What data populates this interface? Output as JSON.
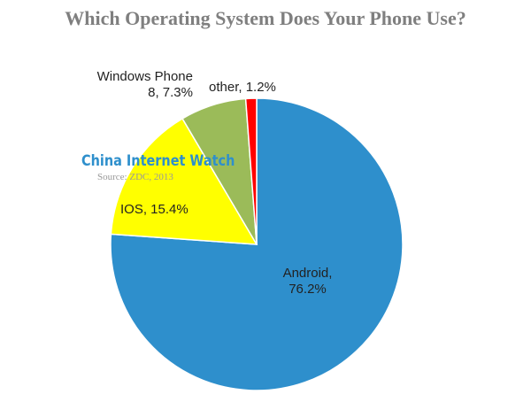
{
  "chart_data": {
    "type": "pie",
    "title": "Which Operating System Does Your Phone Use?",
    "values": [
      76.2,
      15.4,
      7.3,
      1.2
    ],
    "value_labels": [
      "Android, 76.2%",
      "IOS, 15.4%",
      "Windows Phone 8, 7.3%",
      "other, 1.2%"
    ],
    "colors": [
      "#2e8fcc",
      "#ffff00",
      "#9bbb59",
      "#ff0000"
    ],
    "annotations": [
      "China Internet Watch",
      "Source: ZDC, 2013"
    ]
  }
}
